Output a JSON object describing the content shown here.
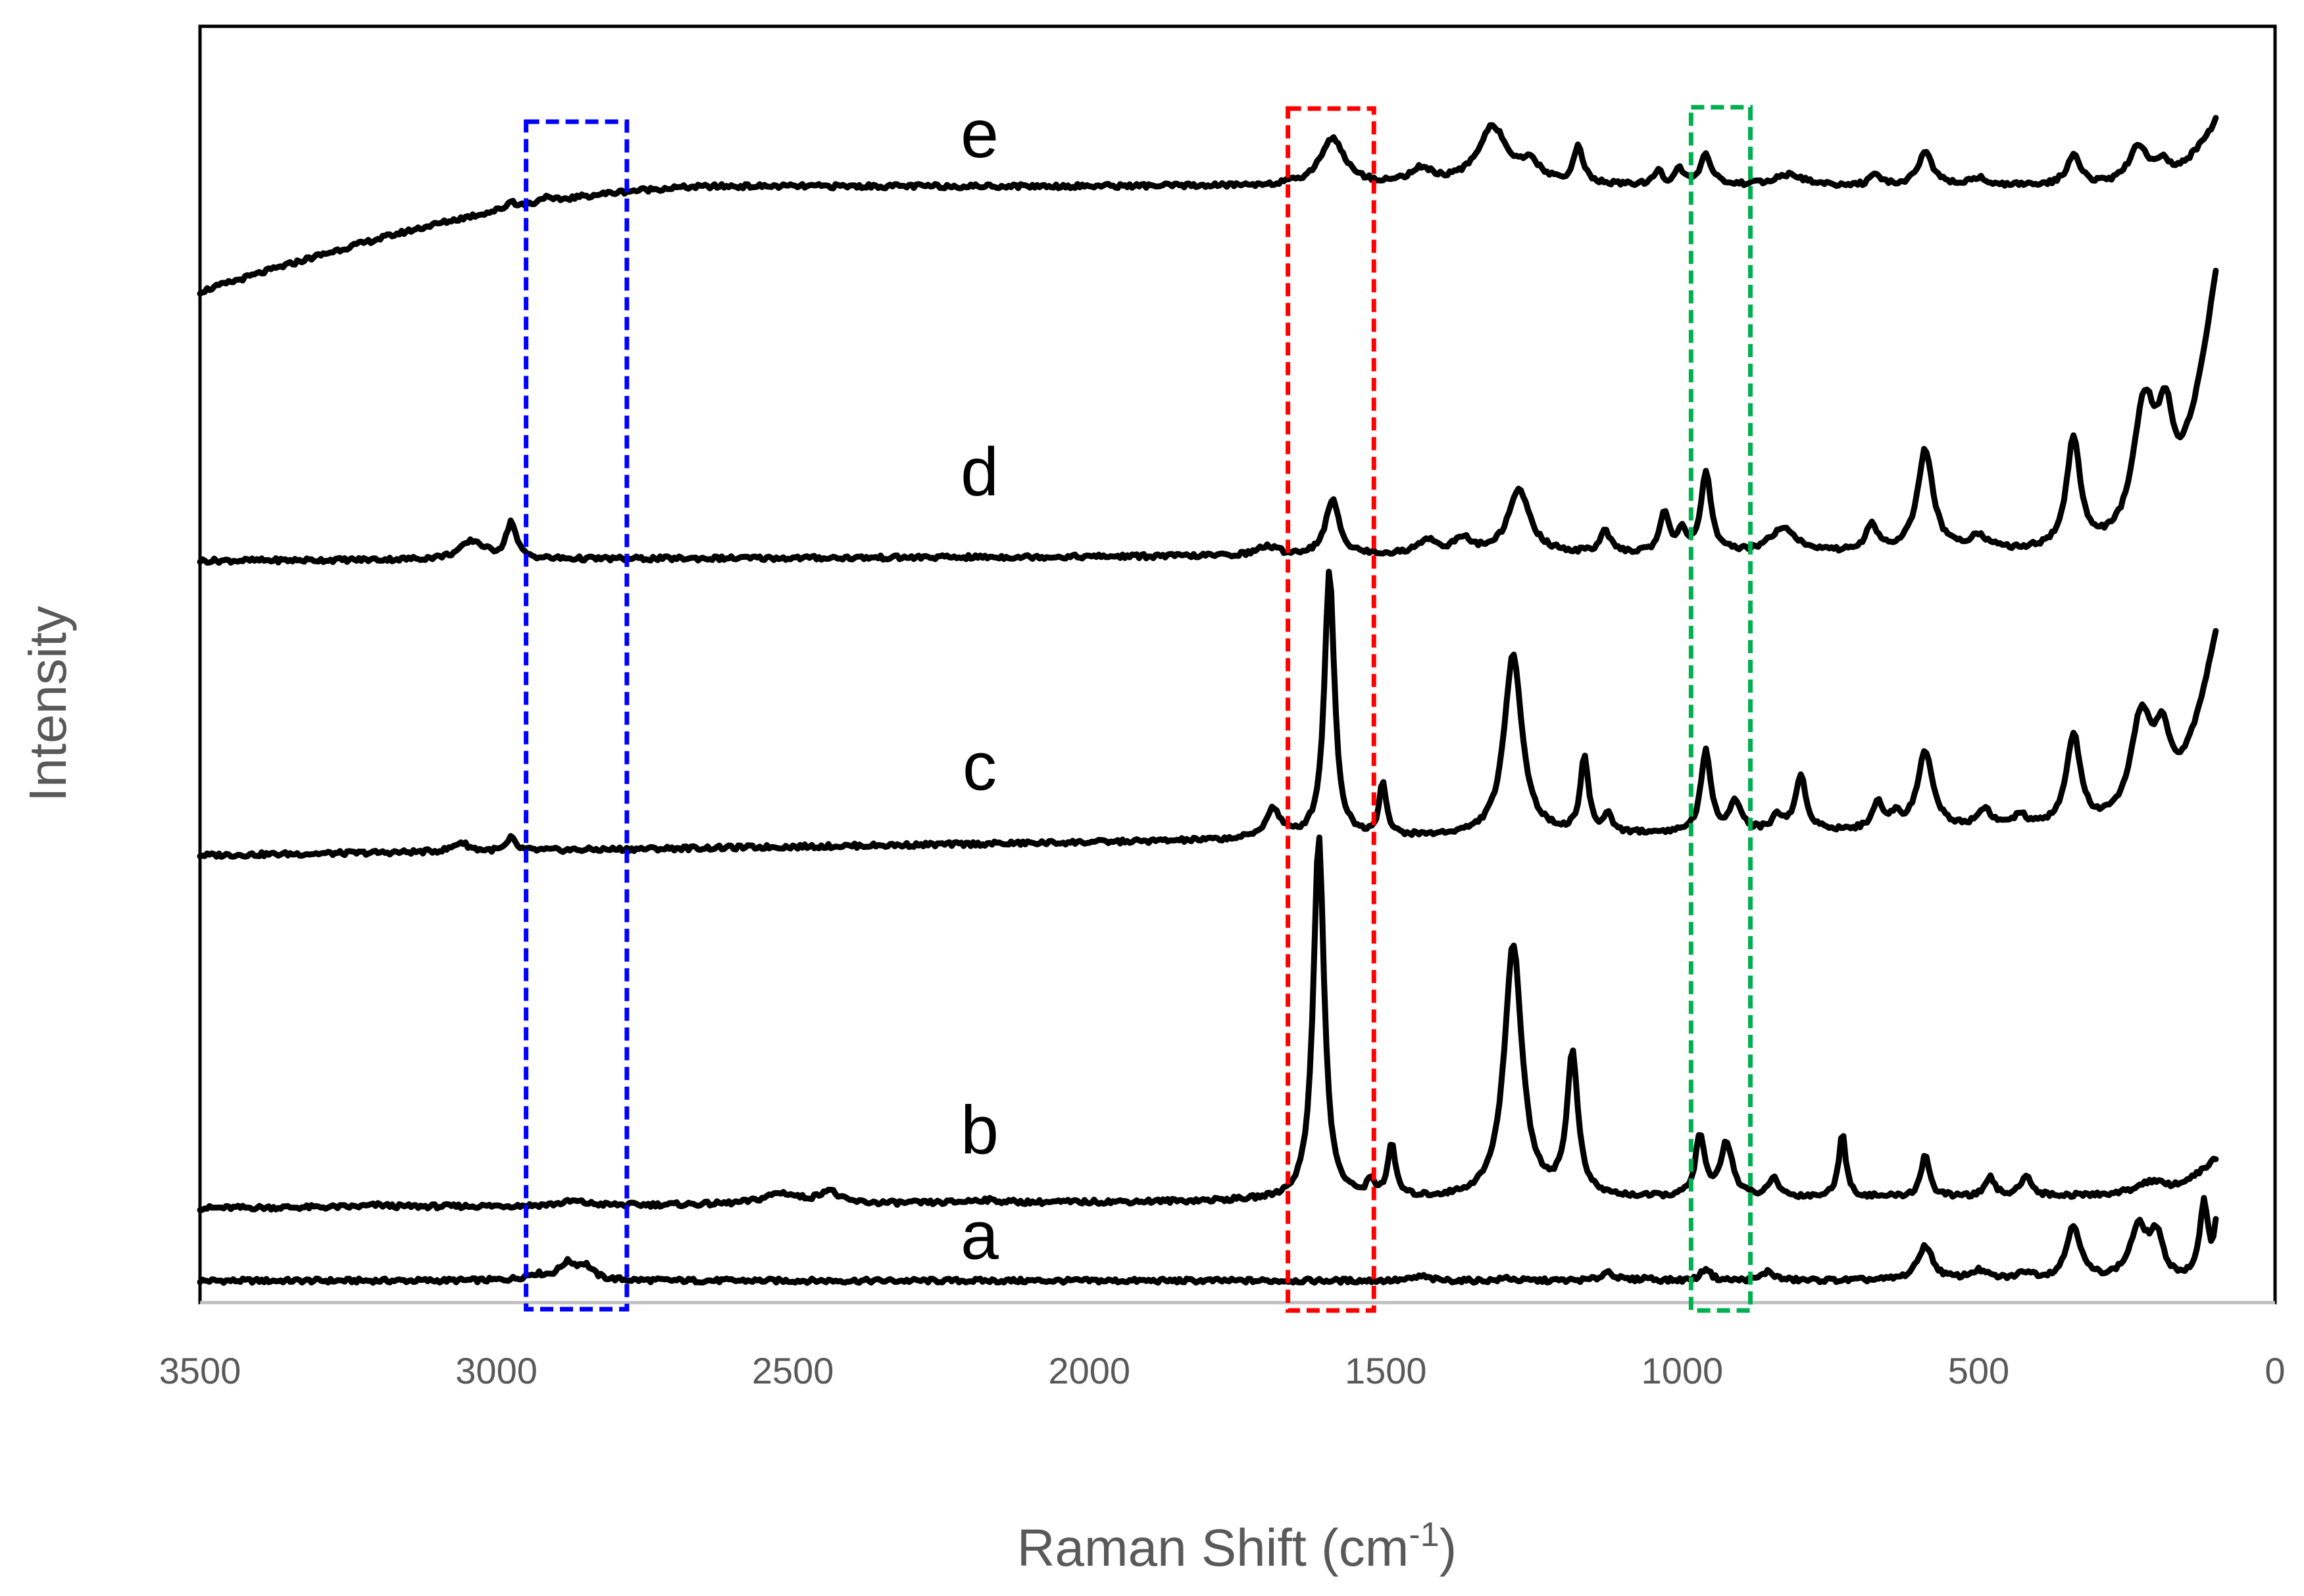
{
  "chart_data": {
    "type": "line",
    "title": "",
    "xlabel": "Raman Shift (cm",
    "xlabel_sup": "-1",
    "xlabel_close": ")",
    "ylabel": "Intensity",
    "xlim": [
      3500,
      0
    ],
    "x_reversed": true,
    "x_ticks": [
      "3500",
      "3000",
      "2500",
      "2000",
      "1500",
      "1000",
      "500",
      "0"
    ],
    "grid": false,
    "y_units": "arbitrary, vertically offset",
    "series": [
      {
        "name": "a",
        "offset": 0,
        "baseline": 0,
        "slope": 0,
        "peaks": [
          {
            "x": 2935,
            "h": 0.15,
            "w": 22
          },
          {
            "x": 2880,
            "h": 0.45,
            "w": 18
          },
          {
            "x": 2850,
            "h": 0.35,
            "w": 15
          },
          {
            "x": 1440,
            "h": 0.12,
            "w": 15
          },
          {
            "x": 1295,
            "h": 0.08,
            "w": 10
          },
          {
            "x": 1125,
            "h": 0.25,
            "w": 12
          },
          {
            "x": 1060,
            "h": 0.08,
            "w": 10
          },
          {
            "x": 960,
            "h": 0.35,
            "w": 9
          },
          {
            "x": 855,
            "h": 0.25,
            "w": 12
          },
          {
            "x": 590,
            "h": 0.95,
            "w": 15
          },
          {
            "x": 500,
            "h": 0.25,
            "w": 18
          },
          {
            "x": 420,
            "h": 0.2,
            "w": 15
          },
          {
            "x": 340,
            "h": 1.5,
            "w": 14
          },
          {
            "x": 230,
            "h": 1.4,
            "w": 18
          },
          {
            "x": 200,
            "h": 1.1,
            "w": 13
          },
          {
            "x": 120,
            "h": 2.1,
            "w": 8
          },
          {
            "x": 95,
            "h": 2.0,
            "w": 7
          }
        ],
        "tail": 0
      },
      {
        "name": "b",
        "offset": 2.0,
        "baseline": 0,
        "slope": 0.35,
        "peaks": [
          {
            "x": 3200,
            "h": 0.05,
            "w": 20
          },
          {
            "x": 2870,
            "h": 0.12,
            "w": 25
          },
          {
            "x": 2520,
            "h": 0.3,
            "w": 35
          },
          {
            "x": 2440,
            "h": 0.35,
            "w": 18
          },
          {
            "x": 2180,
            "h": 0.08,
            "w": 30
          },
          {
            "x": 1613,
            "h": 10.0,
            "w": 11
          },
          {
            "x": 1525,
            "h": 0.4,
            "w": 8
          },
          {
            "x": 1490,
            "h": 1.4,
            "w": 8
          },
          {
            "x": 1285,
            "h": 7.0,
            "w": 18
          },
          {
            "x": 1185,
            "h": 3.9,
            "w": 11
          },
          {
            "x": 970,
            "h": 1.7,
            "w": 9
          },
          {
            "x": 925,
            "h": 1.5,
            "w": 12
          },
          {
            "x": 845,
            "h": 0.5,
            "w": 10
          },
          {
            "x": 730,
            "h": 1.8,
            "w": 7
          },
          {
            "x": 590,
            "h": 1.2,
            "w": 8
          },
          {
            "x": 480,
            "h": 0.5,
            "w": 9
          },
          {
            "x": 420,
            "h": 0.6,
            "w": 10
          },
          {
            "x": 210,
            "h": 0.4,
            "w": 30
          }
        ],
        "tail": 1.0
      },
      {
        "name": "c",
        "offset": 11.7,
        "baseline": 0,
        "slope": 0.8,
        "peaks": [
          {
            "x": 3060,
            "h": 0.25,
            "w": 15
          },
          {
            "x": 2975,
            "h": 0.35,
            "w": 8
          },
          {
            "x": 1690,
            "h": 0.8,
            "w": 15
          },
          {
            "x": 1595,
            "h": 7.4,
            "w": 10
          },
          {
            "x": 1505,
            "h": 1.5,
            "w": 7
          },
          {
            "x": 1285,
            "h": 5.0,
            "w": 18
          },
          {
            "x": 1165,
            "h": 2.1,
            "w": 8
          },
          {
            "x": 1125,
            "h": 0.5,
            "w": 8
          },
          {
            "x": 960,
            "h": 2.2,
            "w": 10
          },
          {
            "x": 910,
            "h": 0.8,
            "w": 12
          },
          {
            "x": 840,
            "h": 0.4,
            "w": 10
          },
          {
            "x": 800,
            "h": 1.5,
            "w": 11
          },
          {
            "x": 670,
            "h": 0.8,
            "w": 9
          },
          {
            "x": 640,
            "h": 0.4,
            "w": 8
          },
          {
            "x": 590,
            "h": 2.1,
            "w": 16
          },
          {
            "x": 490,
            "h": 0.5,
            "w": 14
          },
          {
            "x": 430,
            "h": 0.3,
            "w": 12
          },
          {
            "x": 340,
            "h": 2.5,
            "w": 14
          },
          {
            "x": 225,
            "h": 3.0,
            "w": 22
          },
          {
            "x": 190,
            "h": 2.0,
            "w": 16
          }
        ],
        "tail": 5.2
      },
      {
        "name": "d",
        "offset": 19.8,
        "baseline": 0,
        "slope": 0.25,
        "peaks": [
          {
            "x": 3040,
            "h": 0.5,
            "w": 25
          },
          {
            "x": 2975,
            "h": 1.0,
            "w": 10
          },
          {
            "x": 1700,
            "h": 0.25,
            "w": 20
          },
          {
            "x": 1590,
            "h": 1.5,
            "w": 14
          },
          {
            "x": 1430,
            "h": 0.4,
            "w": 18
          },
          {
            "x": 1370,
            "h": 0.4,
            "w": 18
          },
          {
            "x": 1275,
            "h": 1.75,
            "w": 22
          },
          {
            "x": 1130,
            "h": 0.6,
            "w": 10
          },
          {
            "x": 1030,
            "h": 1.1,
            "w": 9
          },
          {
            "x": 1000,
            "h": 0.6,
            "w": 8
          },
          {
            "x": 960,
            "h": 2.2,
            "w": 10
          },
          {
            "x": 830,
            "h": 0.7,
            "w": 25
          },
          {
            "x": 680,
            "h": 0.7,
            "w": 12
          },
          {
            "x": 590,
            "h": 2.8,
            "w": 16
          },
          {
            "x": 500,
            "h": 0.4,
            "w": 18
          },
          {
            "x": 340,
            "h": 3.0,
            "w": 14
          },
          {
            "x": 220,
            "h": 4.0,
            "w": 24
          },
          {
            "x": 185,
            "h": 2.6,
            "w": 16
          }
        ],
        "tail": 7.5
      },
      {
        "name": "e",
        "offset": 27.2,
        "baseline": 0,
        "slope": 0,
        "hump": {
          "left": 3500,
          "rise_to": 2600,
          "height": 2.9
        },
        "peaks": [
          {
            "x": 2975,
            "h": 0.2,
            "w": 8
          },
          {
            "x": 2920,
            "h": 0.15,
            "w": 8
          },
          {
            "x": 1590,
            "h": 1.3,
            "w": 25
          },
          {
            "x": 1440,
            "h": 0.4,
            "w": 25
          },
          {
            "x": 1320,
            "h": 1.6,
            "w": 30
          },
          {
            "x": 1255,
            "h": 0.5,
            "w": 20
          },
          {
            "x": 1175,
            "h": 1.0,
            "w": 10
          },
          {
            "x": 1040,
            "h": 0.4,
            "w": 8
          },
          {
            "x": 1005,
            "h": 0.5,
            "w": 7
          },
          {
            "x": 960,
            "h": 0.8,
            "w": 12
          },
          {
            "x": 820,
            "h": 0.3,
            "w": 30
          },
          {
            "x": 675,
            "h": 0.25,
            "w": 10
          },
          {
            "x": 590,
            "h": 0.9,
            "w": 15
          },
          {
            "x": 500,
            "h": 0.2,
            "w": 18
          },
          {
            "x": 340,
            "h": 0.8,
            "w": 14
          },
          {
            "x": 230,
            "h": 1.1,
            "w": 20
          },
          {
            "x": 190,
            "h": 0.5,
            "w": 15
          }
        ],
        "tail": 1.8
      }
    ],
    "y_total_range": [
      -0.6,
      34.5
    ],
    "annotations": [
      {
        "label": "blue region",
        "x_from": 2950,
        "x_to": 2780,
        "color": "#0000ff"
      },
      {
        "label": "red region",
        "x_from": 1665,
        "x_to": 1520,
        "color": "#ff0000"
      },
      {
        "label": "green region",
        "x_from": 985,
        "x_to": 885,
        "color": "#00b050"
      }
    ]
  }
}
